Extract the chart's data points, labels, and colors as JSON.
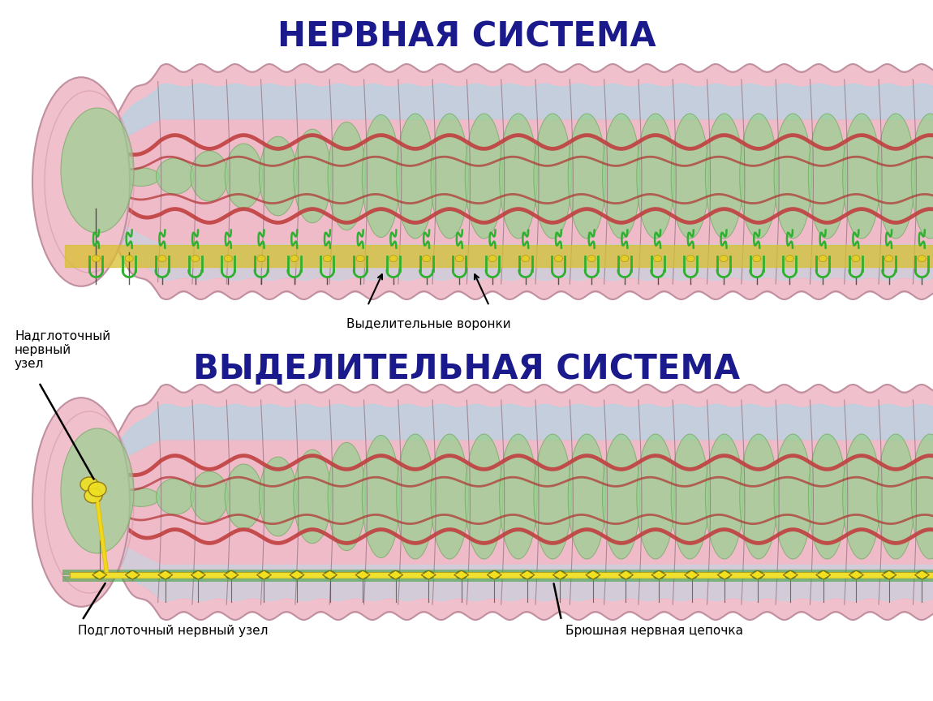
{
  "title1": "НЕРВНАЯ СИСТЕМА",
  "title2": "ВЫДЕЛИТЕЛЬНАЯ СИСТЕМА",
  "title_color": "#1a1a8c",
  "title_fontsize": 30,
  "label1": "Надглоточный\nнервный\nузел",
  "label2": "Подглоточный нервный узел",
  "label3": "Брюшная нервная цепочка",
  "label4": "Выделительные воронки",
  "bg_color": "#ffffff",
  "figure_width": 11.5,
  "figure_height": 8.64
}
